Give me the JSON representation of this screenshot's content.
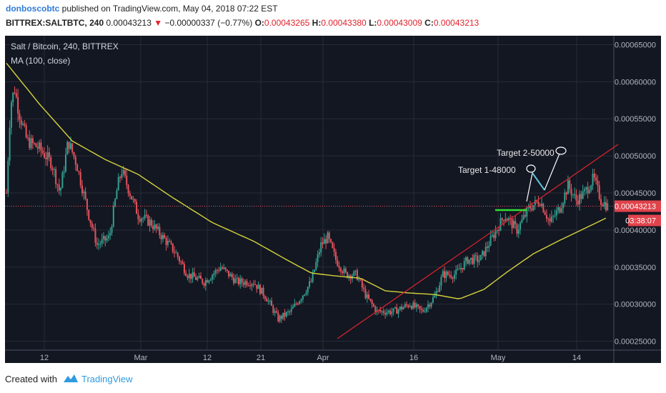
{
  "header": {
    "author": "donboscobtc",
    "published_text": " published on TradingView.com, May 04, 2018 07:22 EST",
    "symbol_line": "BITTREX:SALTBTC, 240",
    "last_price": "0.00043213",
    "change_arrow": "▼",
    "change": "−0.00000337 (−0.77%)",
    "open_label": "O:",
    "open": "0.00043265",
    "high_label": "H:",
    "high": "0.00043380",
    "low_label": "L:",
    "low": "0.00043009",
    "close_label": "C:",
    "close": "0.00043213"
  },
  "legend": {
    "title": "Salt / Bitcoin, 240, BITTREX",
    "indicator": "MA (100, close)"
  },
  "footer": {
    "created_with": "Created with",
    "brand": "TradingView"
  },
  "colors": {
    "background": "#131722",
    "up": "#33a08f",
    "down": "#e6535c",
    "ma": "#d6d23a",
    "trendline": "#e0232c",
    "support": "#33dd33",
    "arrow_cyan": "#5cc4e0",
    "price_tag": "#e0434c",
    "accent": "#2f9ae0"
  },
  "chart_data": {
    "type": "candlestick",
    "title": "Salt / Bitcoin, 240, BITTREX",
    "x_tick_labels": [
      "12",
      "Mar",
      "12",
      "21",
      "Apr",
      "16",
      "May",
      "14"
    ],
    "y_tick_labels": [
      "0.00025000",
      "0.00030000",
      "0.00035000",
      "0.00040000",
      "0.00045000",
      "0.00050000",
      "0.00055000",
      "0.00060000",
      "0.00065000"
    ],
    "y_ticks": [
      0.00025,
      0.0003,
      0.00035,
      0.0004,
      0.00045,
      0.0005,
      0.00055,
      0.0006,
      0.00065
    ],
    "ylim": [
      0.000238,
      0.000662
    ],
    "price_series": [
      {
        "i": 0,
        "v": 0.00045
      },
      {
        "i": 5,
        "v": 0.00057
      },
      {
        "i": 10,
        "v": 0.00059
      },
      {
        "i": 15,
        "v": 0.00056
      },
      {
        "i": 25,
        "v": 0.00052
      },
      {
        "i": 40,
        "v": 0.00051
      },
      {
        "i": 55,
        "v": 0.00049
      },
      {
        "i": 65,
        "v": 0.00045
      },
      {
        "i": 75,
        "v": 0.00052
      },
      {
        "i": 85,
        "v": 0.00049
      },
      {
        "i": 100,
        "v": 0.00042
      },
      {
        "i": 110,
        "v": 0.00038
      },
      {
        "i": 125,
        "v": 0.00039
      },
      {
        "i": 135,
        "v": 0.00046
      },
      {
        "i": 140,
        "v": 0.00048
      },
      {
        "i": 150,
        "v": 0.00045
      },
      {
        "i": 160,
        "v": 0.00042
      },
      {
        "i": 175,
        "v": 0.00041
      },
      {
        "i": 190,
        "v": 0.00039
      },
      {
        "i": 205,
        "v": 0.00037
      },
      {
        "i": 220,
        "v": 0.00034
      },
      {
        "i": 240,
        "v": 0.00033
      },
      {
        "i": 260,
        "v": 0.00035
      },
      {
        "i": 280,
        "v": 0.00033
      },
      {
        "i": 300,
        "v": 0.00033
      },
      {
        "i": 315,
        "v": 0.00031
      },
      {
        "i": 330,
        "v": 0.00028
      },
      {
        "i": 345,
        "v": 0.00029
      },
      {
        "i": 358,
        "v": 0.00031
      },
      {
        "i": 370,
        "v": 0.00033
      },
      {
        "i": 382,
        "v": 0.00038
      },
      {
        "i": 390,
        "v": 0.00039
      },
      {
        "i": 400,
        "v": 0.00036
      },
      {
        "i": 412,
        "v": 0.00034
      },
      {
        "i": 425,
        "v": 0.00034
      },
      {
        "i": 437,
        "v": 0.00031
      },
      {
        "i": 450,
        "v": 0.00029
      },
      {
        "i": 470,
        "v": 0.00029
      },
      {
        "i": 490,
        "v": 0.0003
      },
      {
        "i": 505,
        "v": 0.00029
      },
      {
        "i": 520,
        "v": 0.00031
      },
      {
        "i": 530,
        "v": 0.00034
      },
      {
        "i": 545,
        "v": 0.00034
      },
      {
        "i": 560,
        "v": 0.00036
      },
      {
        "i": 575,
        "v": 0.00036
      },
      {
        "i": 590,
        "v": 0.00039
      },
      {
        "i": 605,
        "v": 0.00042
      },
      {
        "i": 620,
        "v": 0.0004
      },
      {
        "i": 635,
        "v": 0.00043
      },
      {
        "i": 648,
        "v": 0.00044
      },
      {
        "i": 660,
        "v": 0.00041
      },
      {
        "i": 672,
        "v": 0.00043
      },
      {
        "i": 682,
        "v": 0.00046
      },
      {
        "i": 692,
        "v": 0.00044
      },
      {
        "i": 702,
        "v": 0.00045
      },
      {
        "i": 713,
        "v": 0.00047
      },
      {
        "i": 722,
        "v": 0.00044
      },
      {
        "i": 730,
        "v": 0.000432
      }
    ],
    "ma_series": [
      {
        "i": 0,
        "v": 0.000625
      },
      {
        "i": 40,
        "v": 0.00057
      },
      {
        "i": 80,
        "v": 0.00052
      },
      {
        "i": 120,
        "v": 0.000495
      },
      {
        "i": 160,
        "v": 0.000475
      },
      {
        "i": 200,
        "v": 0.000445
      },
      {
        "i": 250,
        "v": 0.00041
      },
      {
        "i": 300,
        "v": 0.000385
      },
      {
        "i": 340,
        "v": 0.00036
      },
      {
        "i": 370,
        "v": 0.000342
      },
      {
        "i": 400,
        "v": 0.000338
      },
      {
        "i": 430,
        "v": 0.000335
      },
      {
        "i": 460,
        "v": 0.000318
      },
      {
        "i": 490,
        "v": 0.000315
      },
      {
        "i": 520,
        "v": 0.000313
      },
      {
        "i": 550,
        "v": 0.000307
      },
      {
        "i": 580,
        "v": 0.00032
      },
      {
        "i": 610,
        "v": 0.000345
      },
      {
        "i": 640,
        "v": 0.000368
      },
      {
        "i": 670,
        "v": 0.000385
      },
      {
        "i": 700,
        "v": 0.000401
      },
      {
        "i": 728,
        "v": 0.000416
      }
    ],
    "last_price_label": "0.00043213",
    "countdown_label": "03:38:07",
    "annotations": [
      {
        "kind": "text",
        "text": "Target 1-48000"
      },
      {
        "kind": "text",
        "text": "Target 2-50000"
      }
    ]
  }
}
